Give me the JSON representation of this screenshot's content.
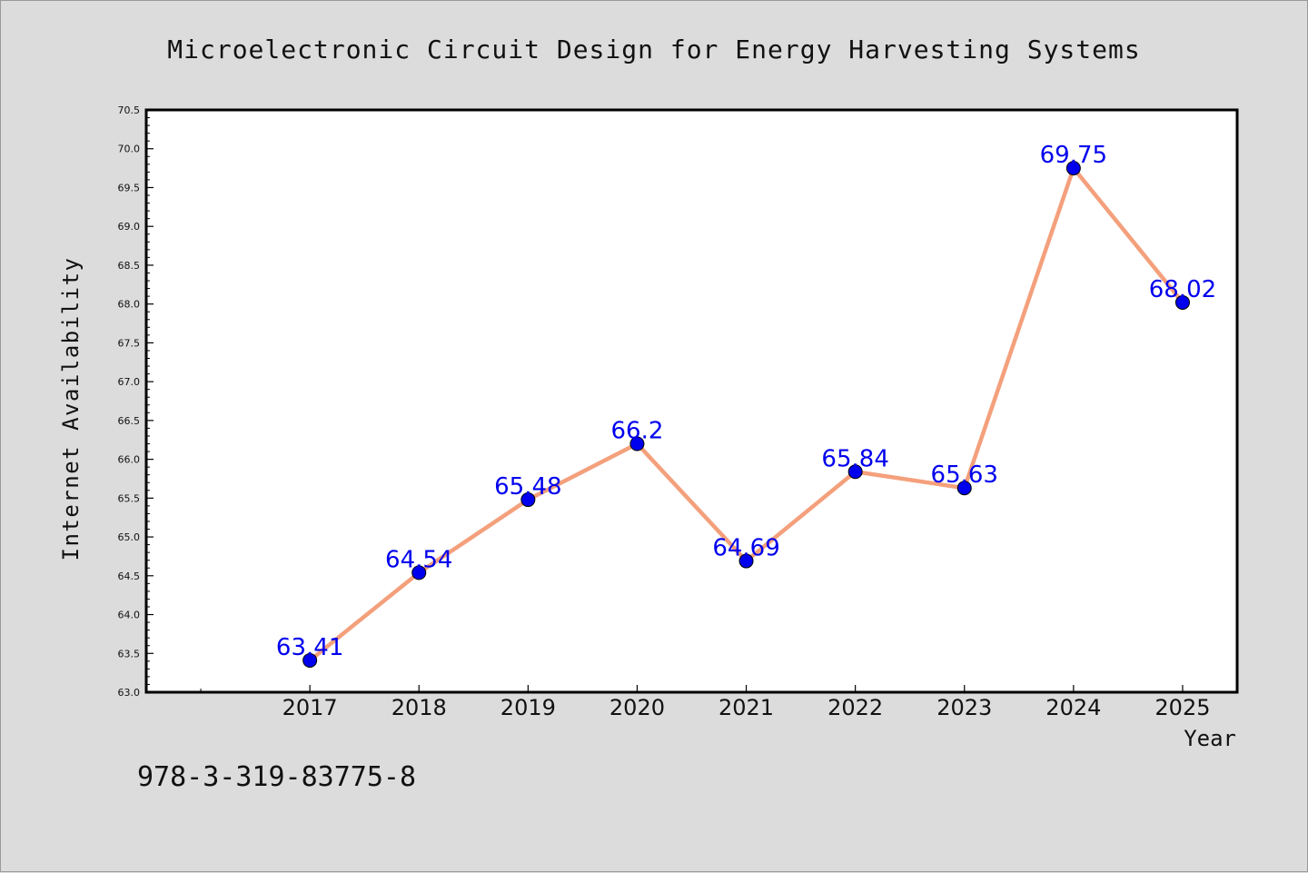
{
  "chart_data": {
    "type": "line",
    "title": "Microelectronic Circuit Design for Energy Harvesting Systems",
    "xlabel": "Year",
    "ylabel": "Internet Availability",
    "x": [
      "2017",
      "2018",
      "2019",
      "2020",
      "2021",
      "2022",
      "2023",
      "2024",
      "2025"
    ],
    "series": [
      {
        "values": [
          63.41,
          64.54,
          65.48,
          66.2,
          64.69,
          65.84,
          65.63,
          69.75,
          68.02
        ],
        "labels": [
          "63.41",
          "64.54",
          "65.48",
          "66.2",
          "64.69",
          "65.84",
          "65.63",
          "69.75",
          "68.02"
        ],
        "line_color": "#f4a07c",
        "marker_color": "#0000ee",
        "label_color": "#0000ee"
      }
    ],
    "ylim": [
      63.0,
      70.5
    ],
    "xlim": [
      2015.5,
      2025.5
    ],
    "yticks": [
      "63.0",
      "63.5",
      "64.0",
      "64.5",
      "65.0",
      "65.5",
      "66.0",
      "66.5",
      "67.0",
      "67.5",
      "68.0",
      "68.5",
      "69.0",
      "69.5",
      "70.0",
      "70.5"
    ],
    "grid": false,
    "legend": "none"
  },
  "footer": {
    "isbn": "978-3-319-83775-8"
  },
  "colors": {
    "background": "#dcdcdc",
    "plot_background": "#ffffff"
  }
}
